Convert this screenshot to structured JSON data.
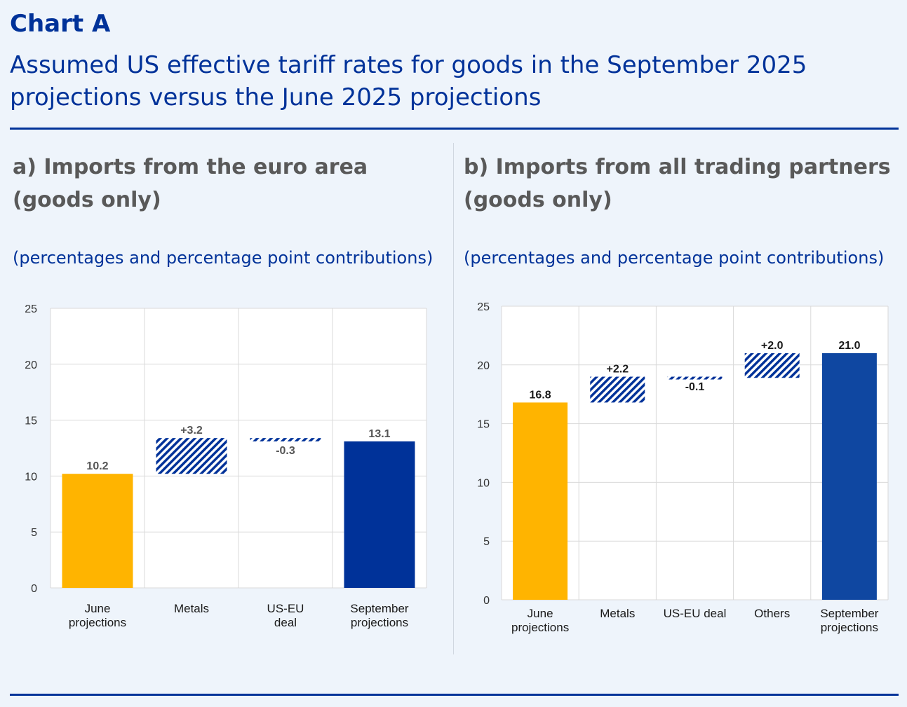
{
  "header": {
    "label": "Chart A",
    "title": "Assumed US effective tariff rates for goods in the September 2025 projections versus the June 2025 projections"
  },
  "colors": {
    "june": "#FFB400",
    "september_a": "#003299",
    "september_b": "#0F47A1",
    "hatch": "#003299",
    "grid": "#d9d9d9",
    "title": "#003299",
    "panel_title": "#595959"
  },
  "panels": [
    {
      "title": "a) Imports from the euro area (goods only)",
      "subtitle": "(percentages and percentage point contributions)"
    },
    {
      "title": "b) Imports from all trading partners (goods only)",
      "subtitle": "(percentages and percentage point contributions)"
    }
  ],
  "chart_data": [
    {
      "type": "bar",
      "subtype": "waterfall",
      "title": "a) Imports from the euro area (goods only)",
      "ylabel": "(percentages and percentage point contributions)",
      "ylim": [
        0,
        25
      ],
      "yticks": [
        "0",
        "5",
        "10",
        "15",
        "20",
        "25"
      ],
      "grid": true,
      "categories": [
        "June\nprojections",
        "Metals",
        "US-EU\ndeal",
        "September\nprojections"
      ],
      "bars": [
        {
          "kind": "total",
          "start": 0,
          "end": 10.2,
          "label": "10.2"
        },
        {
          "kind": "delta",
          "start": 10.2,
          "end": 13.4,
          "label": "+3.2"
        },
        {
          "kind": "delta",
          "start": 13.4,
          "end": 13.1,
          "label": "-0.3"
        },
        {
          "kind": "total",
          "start": 0,
          "end": 13.1,
          "label": "13.1"
        }
      ]
    },
    {
      "type": "bar",
      "subtype": "waterfall",
      "title": "b) Imports from all trading partners (goods only)",
      "ylabel": "(percentages and percentage point contributions)",
      "ylim": [
        0,
        25
      ],
      "yticks": [
        "0",
        "5",
        "10",
        "15",
        "20",
        "25"
      ],
      "grid": true,
      "categories": [
        "June\nprojections",
        "Metals",
        "US-EU deal",
        "Others",
        "September\nprojections"
      ],
      "bars": [
        {
          "kind": "total",
          "start": 0,
          "end": 16.8,
          "label": "16.8"
        },
        {
          "kind": "delta",
          "start": 16.8,
          "end": 19.0,
          "label": "+2.2"
        },
        {
          "kind": "delta",
          "start": 19.0,
          "end": 18.9,
          "label": "-0.1"
        },
        {
          "kind": "delta",
          "start": 18.9,
          "end": 21.0,
          "label": "+2.0"
        },
        {
          "kind": "total",
          "start": 0,
          "end": 21.0,
          "label": "21.0"
        }
      ]
    }
  ]
}
